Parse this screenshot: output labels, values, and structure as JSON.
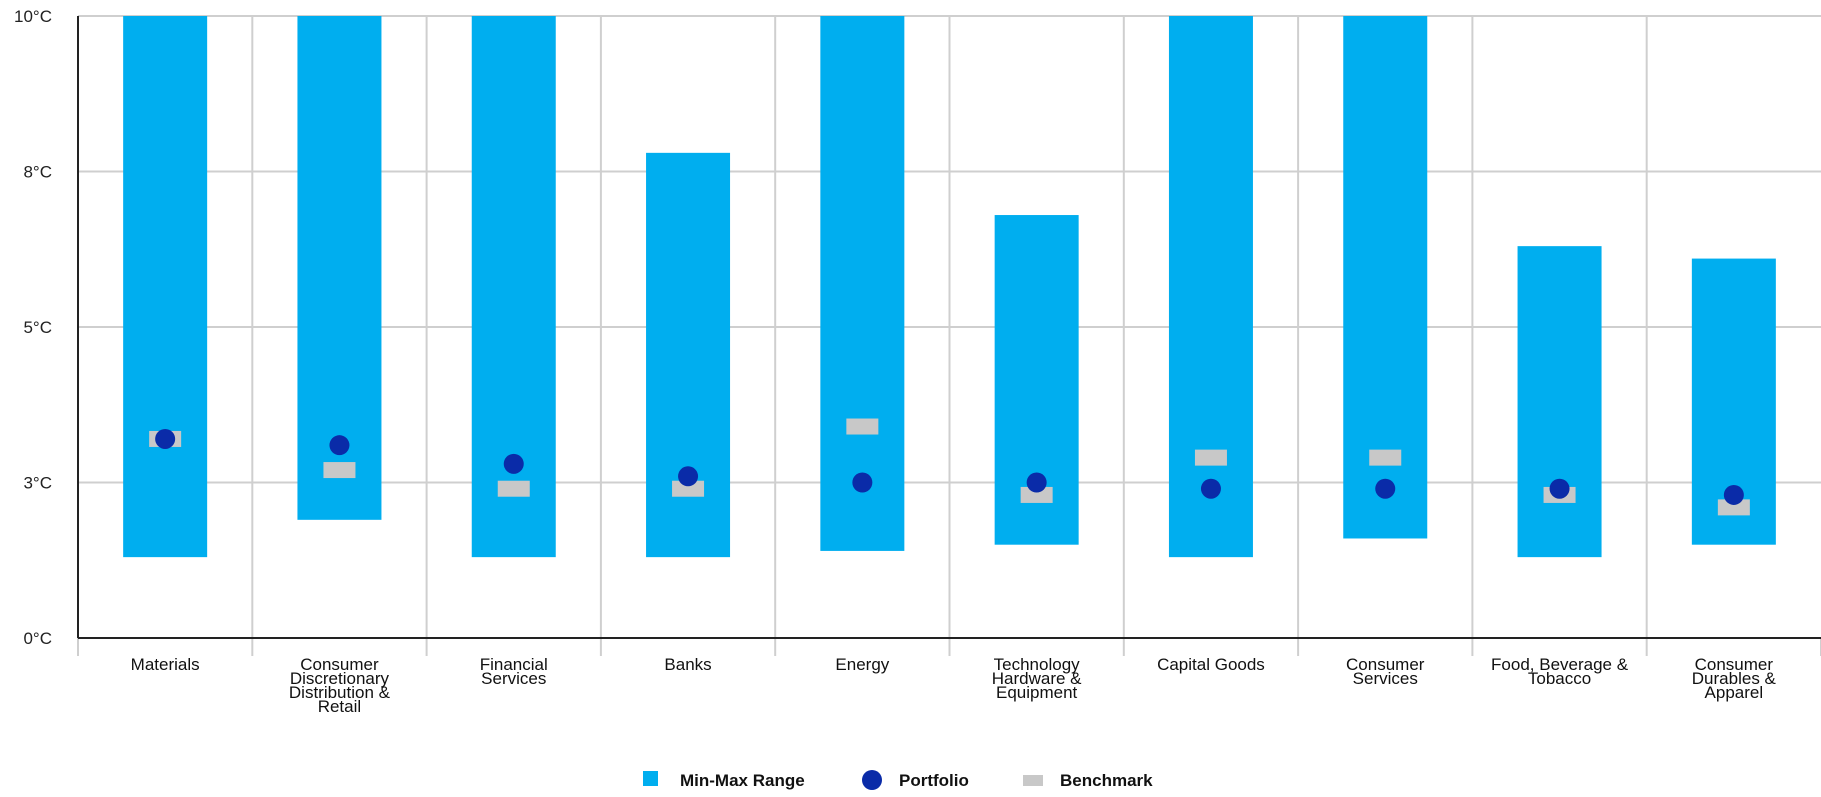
{
  "chart_data": {
    "type": "range-dot",
    "title": "",
    "xlabel": "",
    "ylabel": "",
    "y_ticks": [
      "0°C",
      "3°C",
      "5°C",
      "8°C",
      "10°C"
    ],
    "ylim": [
      0,
      10
    ],
    "categories": [
      [
        "Materials"
      ],
      [
        "Consumer",
        "Discretionary",
        "Distribution &",
        "Retail"
      ],
      [
        "Financial",
        "Services"
      ],
      [
        "Banks"
      ],
      [
        "Energy"
      ],
      [
        "Technology",
        "Hardware &",
        "Equipment"
      ],
      [
        "Capital Goods"
      ],
      [
        "Consumer",
        "Services"
      ],
      [
        "Food, Beverage &",
        "Tobacco"
      ],
      [
        "Consumer",
        "Durables &",
        "Apparel"
      ]
    ],
    "series": [
      {
        "name": "Min-Max Range",
        "kind": "range",
        "color": "#00AEEF",
        "min": [
          1.3,
          1.9,
          1.3,
          1.3,
          1.4,
          1.5,
          1.3,
          1.6,
          1.3,
          1.5
        ],
        "max": [
          10.0,
          10.0,
          10.0,
          7.8,
          10.0,
          6.8,
          10.0,
          10.0,
          6.3,
          6.1
        ]
      },
      {
        "name": "Portfolio",
        "kind": "dot",
        "color": "#0A2BA8",
        "values": [
          3.2,
          3.1,
          2.8,
          2.6,
          2.5,
          2.5,
          2.4,
          2.4,
          2.4,
          2.3
        ]
      },
      {
        "name": "Benchmark",
        "kind": "marker",
        "color": "#C8C8C8",
        "values": [
          3.2,
          2.7,
          2.4,
          2.4,
          3.4,
          2.3,
          2.9,
          2.9,
          2.3,
          2.1
        ]
      }
    ],
    "grid": true,
    "legend": "bottom-center"
  }
}
